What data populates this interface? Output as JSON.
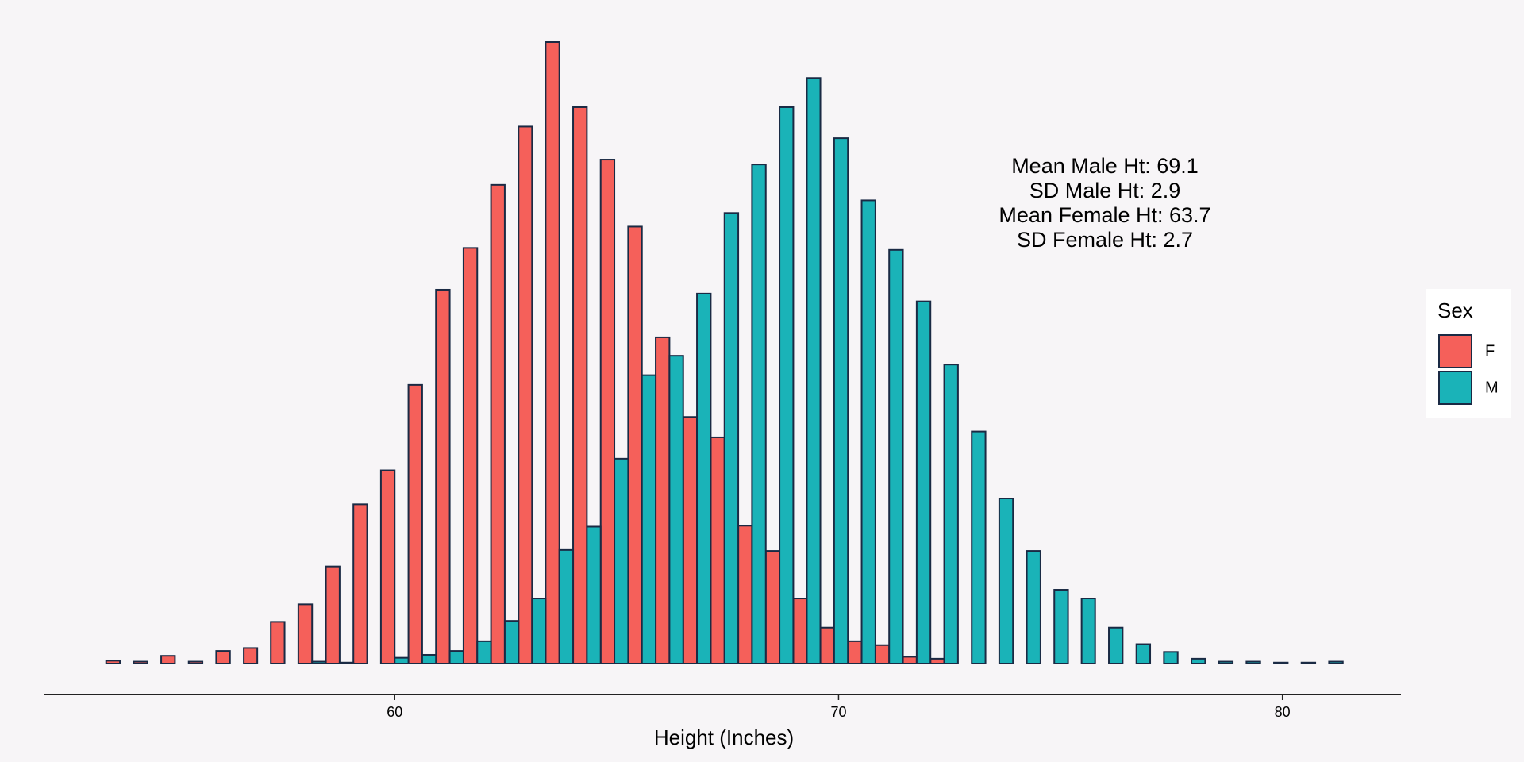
{
  "chart_data": {
    "type": "histogram",
    "x_label": "Height (Inches)",
    "bins": [
      53.5,
      54.12,
      54.74,
      55.36,
      55.98,
      56.6,
      57.21,
      57.83,
      58.45,
      59.07,
      59.69,
      60.31,
      60.93,
      61.55,
      62.17,
      62.79,
      63.4,
      64.02,
      64.64,
      65.26,
      65.88,
      66.5,
      67.12,
      67.74,
      68.36,
      68.98,
      69.59,
      70.21,
      70.83,
      71.45,
      72.07,
      72.69,
      73.31,
      73.93,
      74.55,
      75.17,
      75.78,
      76.4,
      77.02,
      77.64,
      78.26,
      78.88,
      79.5,
      80.12,
      80.74,
      81.36
    ],
    "series": [
      {
        "name": "F",
        "color": "#f5605a",
        "values": [
          3,
          2,
          8,
          2,
          13,
          16,
          43,
          61,
          100,
          164,
          199,
          287,
          385,
          428,
          493,
          553,
          640,
          573,
          519,
          450,
          336,
          254,
          233,
          142,
          116,
          67,
          37,
          23,
          19,
          7,
          5,
          0,
          0,
          0,
          0,
          0,
          0,
          0,
          0,
          0,
          0,
          0,
          0,
          0,
          0
        ]
      },
      {
        "name": "M",
        "color": "#1ab3b8",
        "values": [
          0,
          0,
          0,
          0,
          0,
          0,
          0,
          2,
          1,
          0,
          6,
          9,
          13,
          23,
          44,
          67,
          117,
          141,
          211,
          297,
          317,
          381,
          464,
          514,
          573,
          603,
          541,
          477,
          426,
          373,
          308,
          239,
          170,
          116,
          76,
          67,
          37,
          20,
          12,
          5,
          2,
          2,
          1,
          1,
          2
        ]
      }
    ],
    "xlim": [
      52.11,
      82.67
    ],
    "xticks": [
      60,
      70,
      80
    ],
    "ylim": [
      0,
      640
    ],
    "legend_title": "Sex",
    "annotations": [
      "Mean Male Ht: 69.1",
      "SD Male Ht: 2.9",
      "Mean Female Ht: 63.7",
      "SD Female Ht: 2.7"
    ]
  }
}
